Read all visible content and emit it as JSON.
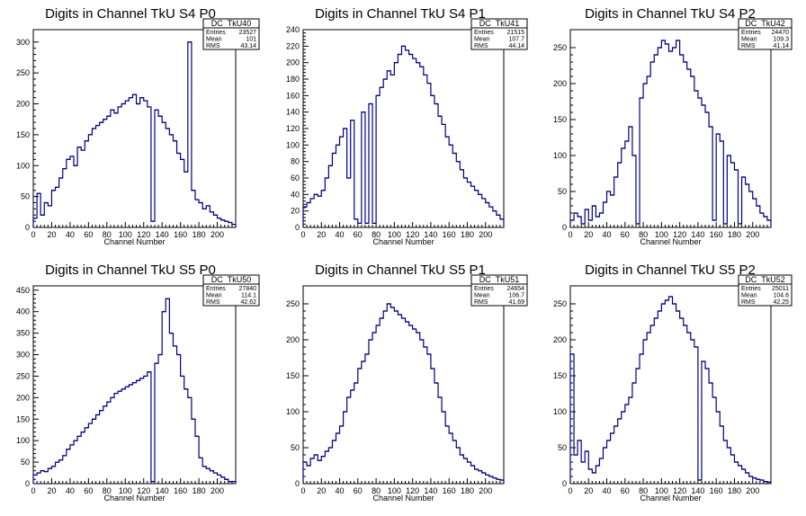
{
  "chart_data": [
    {
      "type": "histogram",
      "title": "Digits in Channel TkU S4 P0",
      "xlabel": "Channel Number",
      "xlim": [
        0,
        220
      ],
      "ylim": [
        0,
        320
      ],
      "yticks": [
        0,
        50,
        100,
        150,
        200,
        250,
        300
      ],
      "xticks": [
        0,
        20,
        40,
        60,
        80,
        100,
        120,
        140,
        160,
        180,
        200
      ],
      "color": "#000080",
      "stats": {
        "name": "DC_TkU40",
        "rows": [
          [
            "Entries",
            "23527"
          ],
          [
            "Mean",
            "101"
          ],
          [
            "RMS",
            "43.14"
          ]
        ]
      },
      "x": [
        0,
        4,
        8,
        12,
        16,
        20,
        24,
        28,
        32,
        36,
        40,
        44,
        48,
        52,
        56,
        60,
        64,
        68,
        72,
        76,
        80,
        84,
        88,
        92,
        96,
        100,
        104,
        108,
        112,
        116,
        120,
        124,
        128,
        132,
        136,
        140,
        144,
        148,
        152,
        156,
        160,
        164,
        168,
        172,
        176,
        180,
        184,
        188,
        192,
        196,
        200,
        204,
        208,
        212,
        216
      ],
      "values": [
        15,
        55,
        20,
        40,
        35,
        60,
        65,
        80,
        95,
        110,
        115,
        100,
        130,
        125,
        140,
        150,
        160,
        165,
        170,
        175,
        180,
        190,
        185,
        195,
        200,
        205,
        210,
        215,
        200,
        210,
        205,
        195,
        10,
        190,
        180,
        170,
        160,
        150,
        140,
        120,
        110,
        90,
        300,
        60,
        45,
        40,
        30,
        35,
        25,
        20,
        15,
        12,
        10,
        8,
        5
      ]
    },
    {
      "type": "histogram",
      "title": "Digits in Channel TkU S4 P1",
      "xlabel": "Channel Number",
      "xlim": [
        0,
        220
      ],
      "ylim": [
        0,
        240
      ],
      "yticks": [
        0,
        20,
        40,
        60,
        80,
        100,
        120,
        140,
        160,
        180,
        200,
        220,
        240
      ],
      "xticks": [
        0,
        20,
        40,
        60,
        80,
        100,
        120,
        140,
        160,
        180,
        200
      ],
      "color": "#000080",
      "stats": {
        "name": "DC_TkU41",
        "rows": [
          [
            "Entries",
            "21515"
          ],
          [
            "Mean",
            "107.7"
          ],
          [
            "RMS",
            "44.14"
          ]
        ]
      },
      "x": [
        0,
        4,
        8,
        12,
        16,
        20,
        24,
        28,
        32,
        36,
        40,
        44,
        48,
        52,
        56,
        60,
        64,
        68,
        72,
        76,
        80,
        84,
        88,
        92,
        96,
        100,
        104,
        108,
        112,
        116,
        120,
        124,
        128,
        132,
        136,
        140,
        144,
        148,
        152,
        156,
        160,
        164,
        168,
        172,
        176,
        180,
        184,
        188,
        192,
        196,
        200,
        204,
        208,
        212,
        216
      ],
      "values": [
        25,
        30,
        35,
        40,
        38,
        45,
        60,
        75,
        90,
        100,
        110,
        120,
        60,
        130,
        10,
        5,
        140,
        5,
        150,
        5,
        160,
        170,
        180,
        190,
        185,
        200,
        210,
        220,
        215,
        210,
        205,
        200,
        195,
        185,
        175,
        160,
        150,
        135,
        125,
        110,
        100,
        90,
        80,
        70,
        60,
        55,
        50,
        45,
        40,
        35,
        30,
        25,
        20,
        15,
        10
      ]
    },
    {
      "type": "histogram",
      "title": "Digits in Channel TkU S4 P2",
      "xlabel": "Channel Number",
      "xlim": [
        0,
        220
      ],
      "ylim": [
        0,
        275
      ],
      "yticks": [
        0,
        50,
        100,
        150,
        200,
        250
      ],
      "xticks": [
        0,
        20,
        40,
        60,
        80,
        100,
        120,
        140,
        160,
        180,
        200
      ],
      "color": "#000080",
      "stats": {
        "name": "DC_TkU42",
        "rows": [
          [
            "Entries",
            "24470"
          ],
          [
            "Mean",
            "109.3"
          ],
          [
            "RMS",
            "41.14"
          ]
        ]
      },
      "x": [
        0,
        4,
        8,
        12,
        16,
        20,
        24,
        28,
        32,
        36,
        40,
        44,
        48,
        52,
        56,
        60,
        64,
        68,
        72,
        76,
        80,
        84,
        88,
        92,
        96,
        100,
        104,
        108,
        112,
        116,
        120,
        124,
        128,
        132,
        136,
        140,
        144,
        148,
        152,
        156,
        160,
        164,
        168,
        172,
        176,
        180,
        184,
        188,
        192,
        196,
        200,
        204,
        208,
        212,
        216
      ],
      "values": [
        10,
        20,
        15,
        5,
        25,
        10,
        30,
        15,
        20,
        35,
        50,
        45,
        70,
        90,
        110,
        120,
        140,
        100,
        5,
        180,
        200,
        210,
        230,
        240,
        250,
        260,
        255,
        245,
        250,
        260,
        240,
        230,
        220,
        210,
        190,
        180,
        170,
        160,
        140,
        10,
        130,
        120,
        5,
        100,
        90,
        80,
        5,
        70,
        60,
        50,
        40,
        30,
        20,
        15,
        10
      ]
    },
    {
      "type": "histogram",
      "title": "Digits in Channel TkU S5 P0",
      "xlabel": "Channel Number",
      "xlim": [
        0,
        220
      ],
      "ylim": [
        0,
        460
      ],
      "yticks": [
        0,
        50,
        100,
        150,
        200,
        250,
        300,
        350,
        400,
        450
      ],
      "xticks": [
        0,
        20,
        40,
        60,
        80,
        100,
        120,
        140,
        160,
        180,
        200
      ],
      "color": "#000080",
      "stats": {
        "name": "DC_TkU50",
        "rows": [
          [
            "Entries",
            "27840"
          ],
          [
            "Mean",
            "114.1"
          ],
          [
            "RMS",
            "42.62"
          ]
        ]
      },
      "x": [
        0,
        4,
        8,
        12,
        16,
        20,
        24,
        28,
        32,
        36,
        40,
        44,
        48,
        52,
        56,
        60,
        64,
        68,
        72,
        76,
        80,
        84,
        88,
        92,
        96,
        100,
        104,
        108,
        112,
        116,
        120,
        124,
        128,
        132,
        136,
        140,
        144,
        148,
        152,
        156,
        160,
        164,
        168,
        172,
        176,
        180,
        184,
        188,
        192,
        196,
        200,
        204,
        208,
        212,
        216
      ],
      "values": [
        20,
        25,
        30,
        28,
        35,
        40,
        50,
        55,
        65,
        80,
        90,
        100,
        110,
        120,
        130,
        140,
        150,
        160,
        170,
        180,
        190,
        200,
        210,
        215,
        220,
        225,
        230,
        235,
        240,
        245,
        250,
        260,
        5,
        280,
        300,
        400,
        430,
        350,
        320,
        300,
        250,
        220,
        200,
        150,
        110,
        60,
        40,
        35,
        30,
        25,
        20,
        15,
        10,
        5,
        5
      ]
    },
    {
      "type": "histogram",
      "title": "Digits in Channel TkU S5 P1",
      "xlabel": "Channel Number",
      "xlim": [
        0,
        220
      ],
      "ylim": [
        0,
        275
      ],
      "yticks": [
        0,
        50,
        100,
        150,
        200,
        250
      ],
      "xticks": [
        0,
        20,
        40,
        60,
        80,
        100,
        120,
        140,
        160,
        180,
        200
      ],
      "color": "#000080",
      "stats": {
        "name": "DC_TkU51",
        "rows": [
          [
            "Entries",
            "24654"
          ],
          [
            "Mean",
            "106.7"
          ],
          [
            "RMS",
            "41.69"
          ]
        ]
      },
      "x": [
        0,
        4,
        8,
        12,
        16,
        20,
        24,
        28,
        32,
        36,
        40,
        44,
        48,
        52,
        56,
        60,
        64,
        68,
        72,
        76,
        80,
        84,
        88,
        92,
        96,
        100,
        104,
        108,
        112,
        116,
        120,
        124,
        128,
        132,
        136,
        140,
        144,
        148,
        152,
        156,
        160,
        164,
        168,
        172,
        176,
        180,
        184,
        188,
        192,
        196,
        200,
        204,
        208,
        212,
        216
      ],
      "values": [
        30,
        25,
        35,
        40,
        32,
        38,
        45,
        50,
        60,
        70,
        80,
        100,
        120,
        130,
        140,
        160,
        170,
        180,
        200,
        210,
        220,
        230,
        240,
        250,
        245,
        240,
        235,
        230,
        225,
        220,
        215,
        210,
        200,
        190,
        180,
        160,
        140,
        120,
        100,
        80,
        70,
        60,
        50,
        40,
        35,
        30,
        25,
        20,
        18,
        15,
        12,
        10,
        8,
        6,
        5
      ]
    },
    {
      "type": "histogram",
      "title": "Digits in Channel TkU S5 P2",
      "xlabel": "Channel Number",
      "xlim": [
        0,
        220
      ],
      "ylim": [
        0,
        275
      ],
      "yticks": [
        0,
        50,
        100,
        150,
        200,
        250
      ],
      "xticks": [
        0,
        20,
        40,
        60,
        80,
        100,
        120,
        140,
        160,
        180,
        200
      ],
      "color": "#000080",
      "stats": {
        "name": "DC_TkU52",
        "rows": [
          [
            "Entries",
            "25011"
          ],
          [
            "Mean",
            "104.6"
          ],
          [
            "RMS",
            "42.25"
          ]
        ]
      },
      "x": [
        0,
        4,
        8,
        12,
        16,
        20,
        24,
        28,
        32,
        36,
        40,
        44,
        48,
        52,
        56,
        60,
        64,
        68,
        72,
        76,
        80,
        84,
        88,
        92,
        96,
        100,
        104,
        108,
        112,
        116,
        120,
        124,
        128,
        132,
        136,
        140,
        144,
        148,
        152,
        156,
        160,
        164,
        168,
        172,
        176,
        180,
        184,
        188,
        192,
        196,
        200,
        204,
        208,
        212,
        216
      ],
      "values": [
        180,
        40,
        60,
        30,
        45,
        20,
        15,
        25,
        35,
        50,
        60,
        70,
        80,
        90,
        100,
        110,
        120,
        140,
        160,
        180,
        200,
        210,
        220,
        230,
        240,
        250,
        255,
        260,
        250,
        240,
        230,
        220,
        210,
        200,
        190,
        5,
        170,
        160,
        140,
        120,
        100,
        80,
        60,
        50,
        40,
        30,
        25,
        20,
        15,
        10,
        8,
        6,
        5,
        3,
        2
      ]
    }
  ]
}
